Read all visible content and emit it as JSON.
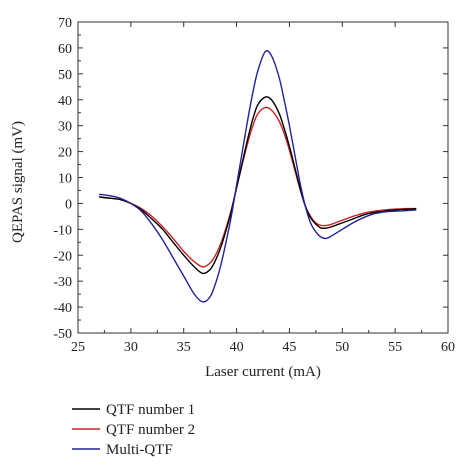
{
  "chart_data": {
    "type": "line",
    "title": "",
    "xlabel": "Laser current (mA)",
    "ylabel": "QEPAS signal (mV)",
    "xlim": [
      25,
      60
    ],
    "ylim": [
      -50,
      70
    ],
    "xticks": [
      25,
      30,
      35,
      40,
      45,
      50,
      55,
      60
    ],
    "yticks": [
      -50,
      -40,
      -30,
      -20,
      -10,
      0,
      10,
      20,
      30,
      40,
      50,
      60,
      70
    ],
    "grid": false,
    "legend_position": "bottom-left, below plot",
    "series": [
      {
        "name": "QTF number 1",
        "color": "#000000",
        "x": [
          27,
          28,
          29,
          30,
          31,
          32,
          33,
          34,
          35,
          36,
          36.8,
          37.5,
          38,
          38.5,
          39,
          39.5,
          40,
          40.5,
          41,
          41.5,
          42,
          42.7,
          43.3,
          44,
          44.5,
          45,
          45.5,
          46,
          46.5,
          47,
          47.5,
          48,
          48.5,
          49,
          50,
          51,
          52,
          53,
          54,
          55,
          56,
          57
        ],
        "y": [
          2.5,
          2,
          1.5,
          0,
          -2.5,
          -6,
          -10,
          -15,
          -20,
          -24.5,
          -27,
          -25.5,
          -22,
          -17,
          -10.5,
          -3,
          6,
          15,
          24,
          32,
          38,
          41,
          40,
          35,
          29,
          22,
          14,
          6,
          -1,
          -5.5,
          -8,
          -9.5,
          -9.5,
          -9,
          -7.5,
          -6,
          -4.5,
          -3.5,
          -3,
          -2.5,
          -2.3,
          -2
        ]
      },
      {
        "name": "QTF number 2",
        "color": "#cc2222",
        "x": [
          27,
          28,
          29,
          30,
          31,
          32,
          33,
          34,
          35,
          36,
          36.8,
          37.5,
          38,
          38.5,
          39,
          39.5,
          40,
          40.5,
          41,
          41.5,
          42,
          42.7,
          43.3,
          44,
          44.5,
          45,
          45.5,
          46,
          46.5,
          47,
          47.5,
          48,
          48.5,
          49,
          50,
          51,
          52,
          53,
          54,
          55,
          56,
          57
        ],
        "y": [
          2.5,
          2,
          1.5,
          0,
          -2,
          -5,
          -9,
          -13.5,
          -18.5,
          -22.5,
          -24.5,
          -23,
          -20,
          -15.5,
          -9.5,
          -2.5,
          6,
          14.5,
          22.5,
          29.5,
          34.5,
          37,
          36,
          32,
          27,
          20.5,
          13,
          5.5,
          -1,
          -5,
          -7.5,
          -8.5,
          -8.5,
          -8,
          -6.5,
          -5,
          -3.8,
          -3,
          -2.5,
          -2.2,
          -2,
          -2
        ]
      },
      {
        "name": "Multi-QTF",
        "color": "#22229a",
        "x": [
          27,
          28,
          29,
          30,
          31,
          32,
          33,
          34,
          35,
          36,
          36.8,
          37.5,
          38,
          38.5,
          39,
          39.5,
          40,
          40.5,
          41,
          41.5,
          42,
          42.7,
          43.3,
          44,
          44.5,
          45,
          45.5,
          46,
          46.5,
          47,
          47.5,
          48,
          48.5,
          49,
          50,
          51,
          52,
          53,
          54,
          55,
          56,
          57
        ],
        "y": [
          3.5,
          3,
          2,
          0,
          -3,
          -8,
          -14,
          -21,
          -28,
          -35,
          -38,
          -36,
          -31,
          -24,
          -15,
          -5,
          7,
          19,
          31,
          42,
          51,
          58.5,
          57,
          49,
          40,
          30,
          19,
          8,
          -1,
          -7.5,
          -11,
          -13,
          -13.5,
          -12.5,
          -10,
          -7.5,
          -5.5,
          -4,
          -3.3,
          -3,
          -2.8,
          -2.5
        ]
      }
    ]
  }
}
